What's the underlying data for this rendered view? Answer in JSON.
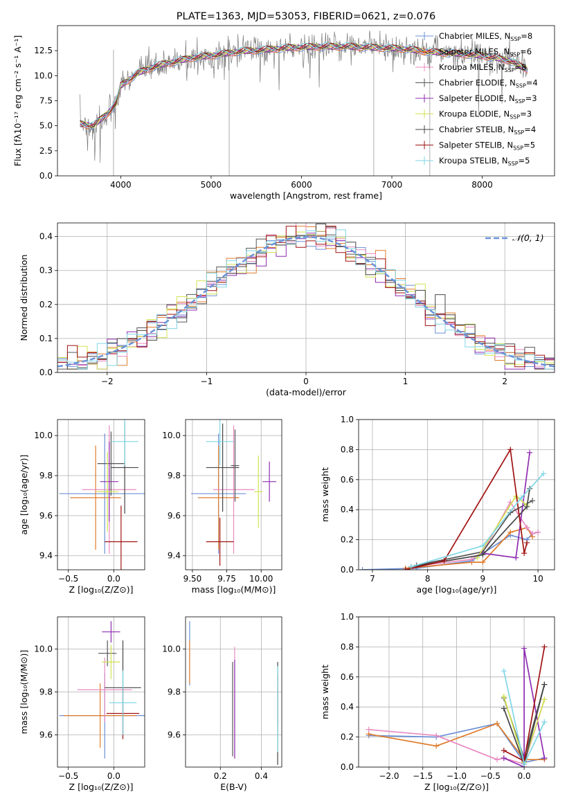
{
  "figure_title": "PLATE=1363, MJD=53053, FIBERID=0621, z=0.076",
  "colors": {
    "ms": [
      "#6b8fd6",
      "#e07b2a",
      "#e88ac0",
      "#555555",
      "#8e2cb0",
      "#d2e34f",
      "#444444",
      "#a01010",
      "#7fd6e6"
    ],
    "grid": "#b0b0b0",
    "gauss": "#6a93d8"
  },
  "chart_data": [
    {
      "id": "spectrum",
      "type": "line",
      "title": "PLATE=1363, MJD=53053, FIBERID=0621, z=0.076",
      "xlabel": "wavelength [Angstrom, rest frame]",
      "ylabel": "Flux [fλ10⁻¹⁷ erg cm⁻² s⁻¹ A⁻¹]",
      "xlim": [
        3300,
        8800
      ],
      "ylim": [
        0,
        15
      ],
      "xticks": [
        4000,
        5000,
        6000,
        7000,
        8000
      ],
      "yticks": [
        0.0,
        2.5,
        5.0,
        7.5,
        10.0,
        12.5
      ],
      "grid": false,
      "legend_position": "right",
      "legend": [
        "Chabrier MILES, N_SSP=8",
        "Salpeter MILES, N_SSP=6",
        "Kroupa MILES, N_SSP=8",
        "Chabrier ELODIE, N_SSP=4",
        "Salpeter ELODIE, N_SSP=3",
        "Kroupa ELODIE, N_SSP=3",
        "Chabrier STELIB, N_SSP=4",
        "Salpeter STELIB, N_SSP=5",
        "Kroupa STELIB, N_SSP=5"
      ],
      "data_envelope": {
        "x": [
          3550,
          3700,
          3850,
          3950,
          4000,
          4200,
          4400,
          4600,
          4800,
          5000,
          5300,
          5600,
          5900,
          6200,
          6500,
          6800,
          7100,
          7400,
          7700,
          8000,
          8300,
          8500
        ],
        "y": [
          5.2,
          5.0,
          6.2,
          7.2,
          9.0,
          10.3,
          11.0,
          11.4,
          11.8,
          12.0,
          12.4,
          12.6,
          12.8,
          12.9,
          12.9,
          12.8,
          12.7,
          12.4,
          12.2,
          12.0,
          11.5,
          10.6
        ]
      }
    },
    {
      "id": "residuals",
      "type": "histogram",
      "xlabel": "(data-model)/error",
      "ylabel": "Normed distribution",
      "xlim": [
        -2.5,
        2.5
      ],
      "ylim": [
        0,
        0.44
      ],
      "xticks": [
        -2,
        -1,
        0,
        1,
        2
      ],
      "yticks": [
        0.0,
        0.1,
        0.2,
        0.3,
        0.4
      ],
      "grid": true,
      "legend_position": "top-right",
      "legend": [
        "𝒩(0, 1)"
      ],
      "gaussian": {
        "mean": 0,
        "sigma": 1
      }
    },
    {
      "id": "age_vs_Z",
      "type": "errorbar",
      "xlabel": "Z [log₁₀(Z/Z⊙)]",
      "ylabel": "age  [log₁₀(age/yr)]",
      "xlim": [
        -0.62,
        0.34
      ],
      "ylim": [
        9.33,
        10.08
      ],
      "xticks": [
        -0.5,
        0.0
      ],
      "yticks": [
        9.4,
        9.6,
        9.8,
        10.0
      ],
      "grid": true,
      "points": [
        {
          "x": -0.1,
          "xerr": 0.5,
          "y": 9.71,
          "yerr": 0.3
        },
        {
          "x": -0.2,
          "xerr": 0.28,
          "y": 9.69,
          "yerr": 0.26
        },
        {
          "x": -0.05,
          "xerr": 0.3,
          "y": 9.73,
          "yerr": 0.32
        },
        {
          "x": -0.03,
          "xerr": 0.15,
          "y": 9.86,
          "yerr": 0.16
        },
        {
          "x": -0.05,
          "xerr": 0.1,
          "y": 9.77,
          "yerr": 0.2
        },
        {
          "x": -0.07,
          "xerr": 0.12,
          "y": 9.72,
          "yerr": 0.2
        },
        {
          "x": 0.12,
          "xerr": 0.15,
          "y": 9.84,
          "yerr": 0.23
        },
        {
          "x": 0.08,
          "xerr": 0.18,
          "y": 9.47,
          "yerr": 0.18
        },
        {
          "x": 0.12,
          "xerr": 0.15,
          "y": 9.97,
          "yerr": 0.12
        }
      ]
    },
    {
      "id": "age_vs_mass",
      "type": "errorbar",
      "xlabel": "mass [log₁₀(M/M⊙)]",
      "ylabel": "",
      "xlim": [
        9.45,
        10.15
      ],
      "ylim": [
        9.33,
        10.08
      ],
      "xticks": [
        9.5,
        9.75,
        10.0
      ],
      "xticklabels": [
        "9.50",
        "9.75",
        "10.00"
      ],
      "yticks": [
        9.4,
        9.6,
        9.8,
        10.0
      ],
      "grid": true,
      "points": [
        {
          "x": 9.69,
          "xerr": 0.2,
          "y": 9.71,
          "yerr": 0.3
        },
        {
          "x": 9.69,
          "xerr": 0.15,
          "y": 9.69,
          "yerr": 0.26
        },
        {
          "x": 9.8,
          "xerr": 0.15,
          "y": 9.73,
          "yerr": 0.32
        },
        {
          "x": 9.81,
          "xerr": 0.03,
          "y": 9.85,
          "yerr": 0.18
        },
        {
          "x": 10.06,
          "xerr": 0.05,
          "y": 9.77,
          "yerr": 0.1
        },
        {
          "x": 9.98,
          "xerr": 0.03,
          "y": 9.72,
          "yerr": 0.18
        },
        {
          "x": 9.72,
          "xerr": 0.12,
          "y": 9.84,
          "yerr": 0.22
        },
        {
          "x": 9.7,
          "xerr": 0.1,
          "y": 9.47,
          "yerr": 0.12
        },
        {
          "x": 9.7,
          "xerr": 0.1,
          "y": 9.97,
          "yerr": 0.12
        }
      ]
    },
    {
      "id": "weight_vs_age",
      "type": "line",
      "xlabel": "age  [log₁₀(age/yr)]",
      "ylabel": "mass weight",
      "xlim": [
        6.75,
        10.3
      ],
      "ylim": [
        0,
        1
      ],
      "xticks": [
        7,
        8,
        9,
        10
      ],
      "yticks": [
        0.0,
        0.2,
        0.4,
        0.6,
        0.8,
        1.0
      ],
      "grid": true,
      "series": [
        {
          "x": [
            6.82,
            7.8,
            8.8,
            9.5,
            9.8,
            9.9,
            10.0
          ],
          "y": [
            0.0,
            0.01,
            0.06,
            0.23,
            0.2,
            0.24,
            0.25
          ]
        },
        {
          "x": [
            7.6,
            8.8,
            9.0,
            9.5,
            9.8,
            9.9
          ],
          "y": [
            0.01,
            0.05,
            0.05,
            0.25,
            0.28,
            0.22
          ]
        },
        {
          "x": [
            7.7,
            8.8,
            9.0,
            9.5,
            9.8,
            9.9,
            10.0
          ],
          "y": [
            0.02,
            0.07,
            0.12,
            0.45,
            0.28,
            0.24,
            0.25
          ]
        },
        {
          "x": [
            7.8,
            9.0,
            9.5,
            9.9
          ],
          "y": [
            0.03,
            0.12,
            0.38,
            0.46
          ]
        },
        {
          "x": [
            9.0,
            9.6,
            9.85
          ],
          "y": [
            0.11,
            0.08,
            0.78
          ]
        },
        {
          "x": [
            8.9,
            9.6,
            9.8
          ],
          "y": [
            0.08,
            0.49,
            0.43
          ]
        },
        {
          "x": [
            7.7,
            9.0,
            9.8,
            9.85
          ],
          "y": [
            0.02,
            0.1,
            0.42,
            0.54
          ]
        },
        {
          "x": [
            7.6,
            8.3,
            9.5,
            9.75,
            9.8
          ],
          "y": [
            0.0,
            0.06,
            0.8,
            0.11,
            0.18
          ]
        },
        {
          "x": [
            7.7,
            9.0,
            9.7,
            10.1
          ],
          "y": [
            0.02,
            0.16,
            0.48,
            0.64
          ]
        }
      ]
    },
    {
      "id": "mass_vs_Z",
      "type": "errorbar",
      "xlabel": "Z [log₁₀(Z/Z⊙)]",
      "ylabel": "mass [log₁₀(M/M⊙)]",
      "xlim": [
        -0.62,
        0.34
      ],
      "ylim": [
        9.45,
        10.15
      ],
      "xticks": [
        -0.5,
        0.0
      ],
      "yticks": [
        9.6,
        9.8,
        10.0
      ],
      "grid": true,
      "points": [
        {
          "x": -0.1,
          "xerr": 0.5,
          "y": 9.69,
          "yerr": 0.2
        },
        {
          "x": -0.15,
          "xerr": 0.4,
          "y": 9.69,
          "yerr": 0.15
        },
        {
          "x": -0.1,
          "xerr": 0.3,
          "y": 9.81,
          "yerr": 0.15
        },
        {
          "x": -0.07,
          "xerr": 0.1,
          "y": 9.98,
          "yerr": 0.06
        },
        {
          "x": -0.03,
          "xerr": 0.1,
          "y": 10.08,
          "yerr": 0.05
        },
        {
          "x": -0.03,
          "xerr": 0.1,
          "y": 9.94,
          "yerr": 0.08
        },
        {
          "x": 0.1,
          "xerr": 0.2,
          "y": 9.82,
          "yerr": 0.22
        },
        {
          "x": 0.1,
          "xerr": 0.18,
          "y": 9.7,
          "yerr": 0.12
        },
        {
          "x": 0.1,
          "xerr": 0.15,
          "y": 9.75,
          "yerr": 0.15
        }
      ]
    },
    {
      "id": "mass_vs_ebv",
      "type": "errorbar",
      "xlabel": "E(B-V)",
      "ylabel": "",
      "xlim": [
        0.03,
        0.5
      ],
      "ylim": [
        9.45,
        10.15
      ],
      "xticks": [
        0.2,
        0.4
      ],
      "yticks": [
        9.6,
        9.8,
        10.0
      ],
      "grid": true,
      "points": [
        {
          "x": 0.05,
          "xerr": 0.0,
          "y": 9.98,
          "yerr": 0.15
        },
        {
          "x": 0.05,
          "xerr": 0.0,
          "y": 9.94,
          "yerr": 0.1
        },
        {
          "x": 0.27,
          "xerr": 0.0,
          "y": 9.75,
          "yerr": 0.26
        },
        {
          "x": 0.26,
          "xerr": 0.0,
          "y": 9.72,
          "yerr": 0.22
        },
        {
          "x": 0.27,
          "xerr": 0.0,
          "y": 9.72,
          "yerr": 0.23
        },
        {
          "x": 0.48,
          "xerr": 0.0,
          "y": 9.65,
          "yerr": 0.15
        },
        {
          "x": 0.48,
          "xerr": 0.0,
          "y": 9.7,
          "yerr": 0.24
        },
        {
          "x": 0.48,
          "xerr": 0.0,
          "y": 9.76,
          "yerr": 0.12
        },
        {
          "x": 0.48,
          "xerr": 0.0,
          "y": 9.72,
          "yerr": 0.2
        }
      ]
    },
    {
      "id": "weight_vs_Z",
      "type": "line",
      "xlabel": "Z [log₁₀(Z/Z⊙)]",
      "ylabel": "mass weight",
      "xlim": [
        -2.45,
        0.45
      ],
      "ylim": [
        0,
        1
      ],
      "xticks": [
        -2.0,
        -1.5,
        -1.0,
        -0.5,
        0.0
      ],
      "yticks": [
        0.0,
        0.2,
        0.4,
        0.6,
        0.8,
        1.0
      ],
      "grid": true,
      "series": [
        {
          "x": [
            -2.3,
            -1.3,
            -0.4,
            0.0,
            0.3
          ],
          "y": [
            0.21,
            0.2,
            0.29,
            0.03,
            0.06
          ]
        },
        {
          "x": [
            -2.3,
            -1.3,
            -0.4,
            0.0,
            0.3
          ],
          "y": [
            0.22,
            0.14,
            0.29,
            0.05,
            0.05
          ]
        },
        {
          "x": [
            -2.3,
            -1.3,
            -0.4,
            -0.3,
            0.0,
            0.3
          ],
          "y": [
            0.25,
            0.21,
            0.05,
            0.06,
            0.02,
            0.45
          ]
        },
        {
          "x": [
            -0.3,
            0.0,
            0.3
          ],
          "y": [
            0.46,
            0.06,
            0.55
          ]
        },
        {
          "x": [
            -0.3,
            0.0,
            0.0,
            0.3
          ],
          "y": [
            0.06,
            0.0,
            0.79,
            0.06
          ]
        },
        {
          "x": [
            -0.3,
            0.0,
            0.3
          ],
          "y": [
            0.47,
            0.03,
            0.45
          ]
        },
        {
          "x": [
            -0.3,
            0.0,
            0.3
          ],
          "y": [
            0.39,
            0.02,
            0.55
          ]
        },
        {
          "x": [
            -0.3,
            0.0,
            0.3
          ],
          "y": [
            0.11,
            0.04,
            0.8
          ]
        },
        {
          "x": [
            -0.3,
            0.0,
            0.3
          ],
          "y": [
            0.64,
            0.02,
            0.3
          ]
        }
      ]
    }
  ]
}
